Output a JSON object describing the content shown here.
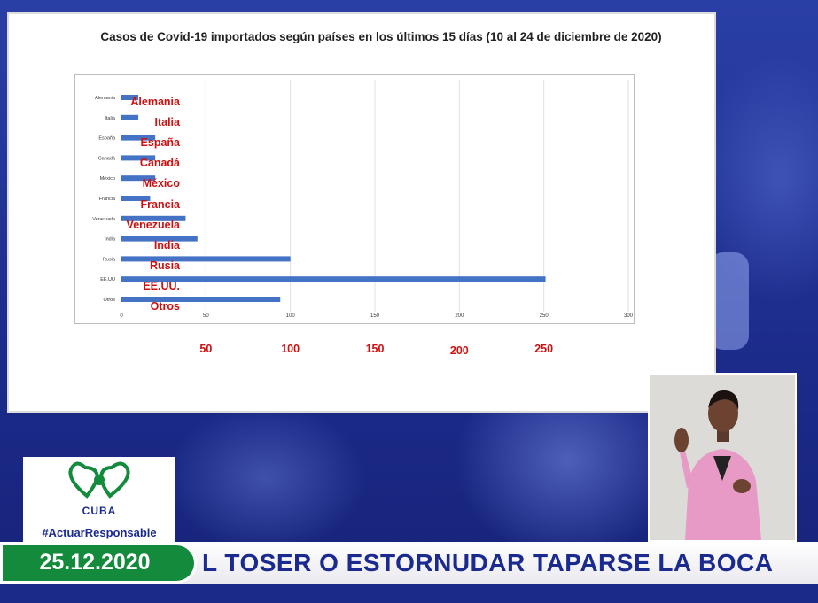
{
  "chart_data": {
    "type": "bar",
    "orientation": "horizontal",
    "title": "Casos de Covid-19 importados según países en los últimos 15 días (10 al 24 de diciembre de 2020)",
    "categories": [
      "Alemania",
      "Italia",
      "España",
      "Canadá",
      "México",
      "Francia",
      "Venezuela",
      "India",
      "Rusia",
      "EE.UU",
      "Otros"
    ],
    "values": [
      10,
      10,
      20,
      20,
      20,
      17,
      38,
      45,
      100,
      251,
      94
    ],
    "xlim": [
      0,
      300
    ],
    "xticks": [
      "0",
      "50",
      "100",
      "150",
      "200",
      "250",
      "300"
    ],
    "grid": true,
    "bar_color": "#4472c4"
  },
  "overlay": {
    "category_labels": [
      "Alemania",
      "Italia",
      "España",
      "Canadá",
      "México",
      "Francia",
      "Venezuela",
      "India",
      "Rusia",
      "EE.UU.",
      "Otros"
    ],
    "tick_labels": [
      "50",
      "100",
      "150",
      "200",
      "250"
    ],
    "color": "#d01010"
  },
  "logo": {
    "text": "CUBA",
    "hashtag": "#ActuarResponsable",
    "color": "#148a3d"
  },
  "ticker": {
    "date": "25.12.2020",
    "message": "L TOSER O ESTORNUDAR TAPARSE LA BOCA"
  }
}
